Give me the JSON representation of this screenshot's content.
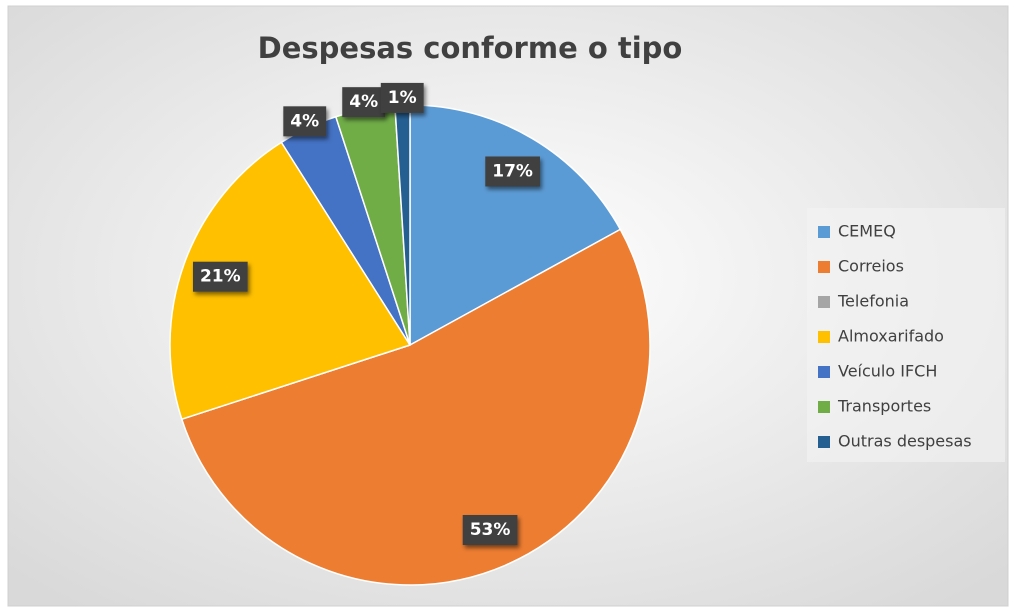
{
  "chart_data": {
    "type": "pie",
    "title": "Despesas conforme o tipo",
    "categories": [
      "CEMEQ",
      "Correios",
      "Telefonia",
      "Almoxarifado",
      "Veículo IFCH",
      "Transportes",
      "Outras despesas"
    ],
    "values": [
      17,
      53,
      0,
      21,
      4,
      4,
      1
    ],
    "value_labels": [
      "17%",
      "53%",
      null,
      "21%",
      "4%",
      "4%",
      "1%"
    ],
    "colors": [
      "#5b9bd5",
      "#ed7d31",
      "#a5a5a5",
      "#ffc000",
      "#4472c4",
      "#70ad47",
      "#255e91"
    ],
    "legend": "right"
  }
}
